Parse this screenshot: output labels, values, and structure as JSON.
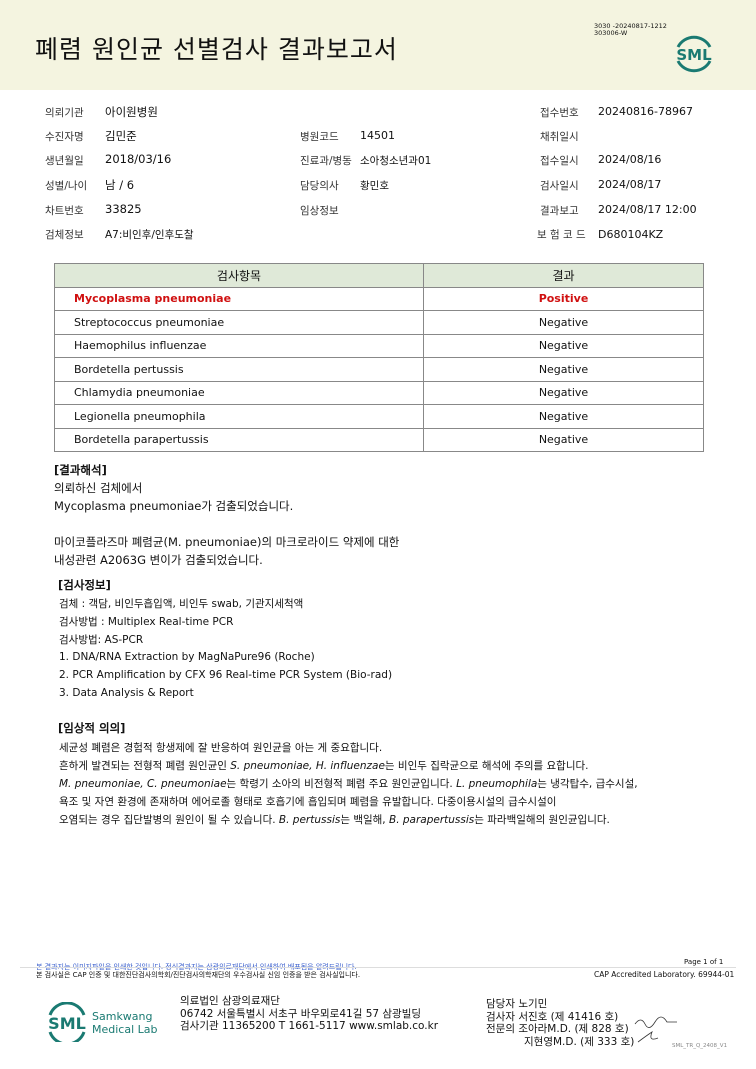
{
  "header": {
    "title": "폐렴 원인균 선별검사 결과보고서",
    "code_line1": "3030 -20240817-1212",
    "code_line2": "303006-W",
    "logo_text": "SML"
  },
  "patient": {
    "institution_label": "의뢰기관",
    "institution": "아이원병원",
    "name_label": "수진자명",
    "name": "김민준",
    "dob_label": "생년월일",
    "dob": "2018/03/16",
    "sex_age_label": "성별/나이",
    "sex_age": "남 / 6",
    "chart_label": "차트번호",
    "chart": "33825",
    "specimen_label": "검체정보",
    "specimen": "A7:비인후/인후도찰",
    "hospital_code_label": "병원코드",
    "hospital_code": "14501",
    "dept_label": "진료과/병동",
    "dept": "소아청소년과01",
    "doctor_label": "담당의사",
    "doctor": "황민호",
    "clinical_label": "임상정보",
    "clinical": "",
    "receipt_no_label": "접수번호",
    "receipt_no": "20240816-78967",
    "collect_label": "채취일시",
    "collect": "",
    "receipt_date_label": "접수일시",
    "receipt_date": "2024/08/16",
    "test_date_label": "검사일시",
    "test_date": "2024/08/17",
    "report_label": "결과보고",
    "report": "2024/08/17 12:00",
    "insurance_label": "보 험 코 드",
    "insurance": "D680104KZ"
  },
  "results": {
    "col_item": "검사항목",
    "col_result": "결과",
    "rows": [
      {
        "item": "Mycoplasma pneumoniae",
        "result": "Positive"
      },
      {
        "item": "Streptococcus pneumoniae",
        "result": "Negative"
      },
      {
        "item": "Haemophilus influenzae",
        "result": "Negative"
      },
      {
        "item": "Bordetella pertussis",
        "result": "Negative"
      },
      {
        "item": "Chlamydia pneumoniae",
        "result": "Negative"
      },
      {
        "item": "Legionella pneumophila",
        "result": "Negative"
      },
      {
        "item": "Bordetella parapertussis",
        "result": "Negative"
      }
    ]
  },
  "interpretation": {
    "heading": "[결과해석]",
    "l1": "의뢰하신 검체에서",
    "l2": "Mycoplasma pneumoniae가 검출되었습니다.",
    "l3": "마이코플라즈마 폐렴균(M. pneumoniae)의 마크로라이드 약제에 대한",
    "l4": "내성관련 A2063G 변이가 검출되었습니다."
  },
  "testinfo": {
    "heading": "[검사정보]",
    "l1": "검체 : 객담, 비인두흡입액, 비인두 swab, 기관지세척액",
    "l2": "검사방법 : Multiplex Real-time PCR",
    "l3": "검사방법: AS-PCR",
    "l4": "1. DNA/RNA Extraction by MagNaPure96 (Roche)",
    "l5": "2. PCR Amplification by CFX 96 Real-time PCR System (Bio-rad)",
    "l6": "3. Data Analysis & Report"
  },
  "clinical": {
    "heading": "[임상적 의의]",
    "l1": "세균성 폐렴은 경험적 항생제에 잘 반응하여 원인균을 아는 게 중요합니다.",
    "l2a": "흔하게 발견되는 전형적 폐렴 원인균인 ",
    "l2b": "S. pneumoniae, H. influenzae",
    "l2c": "는 비인두 집락균으로 해석에 주의를 요합니다.",
    "l3a": "M. pneumoniae, C. pneumoniae",
    "l3b": "는 학령기 소아의 비전형적 폐렴 주요 원인균입니다. ",
    "l3c": "L. pneumophila",
    "l3d": "는 냉각탑수, 급수시설,",
    "l4": "욕조 및 자연 환경에 존재하며 에어로졸 형태로 호흡기에 흡입되며 폐렴을 유발합니다. 다중이용시설의 급수시설이",
    "l5a": "오염되는 경우 집단발병의 원인이 될 수 있습니다. ",
    "l5b": "B. pertussis",
    "l5c": "는 백일해, ",
    "l5d": "B. parapertussis",
    "l5e": "는 파라백일해의 원인균입니다."
  },
  "footer": {
    "notice1": "본 결과지는 이미지파일을 인쇄한 것입니다. 정식결과지는 삼광의료재단에서 인쇄하여 배포됨을 알려드립니다.",
    "notice2": "본 검사실은 CAP 인증 및 대한진단검사의학회/진단검사의학재단의 우수검사실 신임 인증을 받은 검사실입니다.",
    "page": "Page 1 of 1",
    "cap": "CAP Accredited Laboratory. 69944-01",
    "logo_text": "SML",
    "lab_name1": "Samkwang",
    "lab_name2": "Medical Lab",
    "org": "의료법인 삼광의료재단",
    "address": "06742 서울특별시 서초구 바우뫼로41길 57 삼광빌딩",
    "contact": "검사기관 11365200 T 1661-5117 www.smlab.co.kr",
    "staff1": "담당자 노기민",
    "staff2": "검사자 서진호 (제 41416 호)",
    "staff3": "전문의 조아라M.D. (제 828 호)",
    "staff4": "지현영M.D. (제 333 호)",
    "form_code": "SML_TR_Q_2408_V1"
  },
  "colors": {
    "accent": "#1a7a72",
    "positive": "#d01010",
    "header_bg": "#f4f4e0",
    "table_header_bg": "#dfe9d8"
  }
}
